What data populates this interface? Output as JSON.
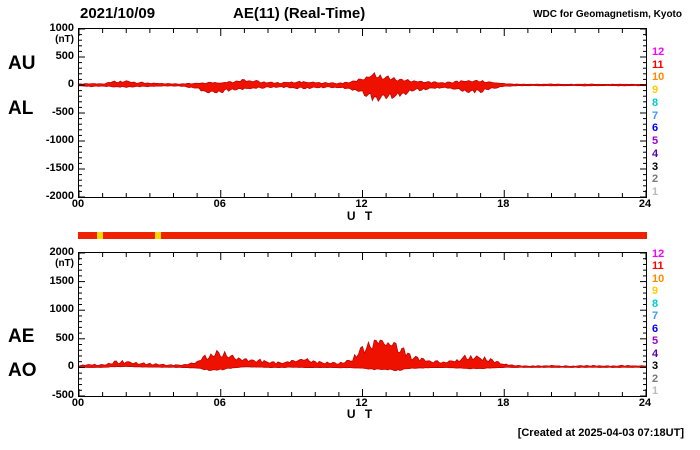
{
  "header": {
    "date": "2021/10/09",
    "title": "AE(11) (Real-Time)",
    "source": "WDC for Geomagnetism, Kyoto"
  },
  "footer": {
    "created": "[Created at 2025-04-03 07:18UT]"
  },
  "legend": {
    "station_counts": [
      {
        "n": "12",
        "color": "#ff00ff"
      },
      {
        "n": "11",
        "color": "#ff0000"
      },
      {
        "n": "10",
        "color": "#ff8800"
      },
      {
        "n": "9",
        "color": "#ffcc00"
      },
      {
        "n": "8",
        "color": "#00cccc"
      },
      {
        "n": "7",
        "color": "#3399ff"
      },
      {
        "n": "6",
        "color": "#0000ee"
      },
      {
        "n": "5",
        "color": "#9900cc"
      },
      {
        "n": "4",
        "color": "#5500aa"
      },
      {
        "n": "3",
        "color": "#000000"
      },
      {
        "n": "2",
        "color": "#777777"
      },
      {
        "n": "1",
        "color": "#bbbbbb"
      }
    ]
  },
  "status_bar": {
    "color": "#ee2200",
    "segments": [
      {
        "start": 0.8,
        "end": 1.05,
        "color": "#f7d800"
      },
      {
        "start": 3.25,
        "end": 3.5,
        "color": "#f7d800"
      }
    ]
  },
  "chart_data": [
    {
      "type": "area",
      "labels_left": [
        "AU",
        "AL"
      ],
      "xlabel": "U T",
      "ylabel": "(nT)",
      "xlim": [
        0,
        24
      ],
      "ylim": [
        -2000,
        1000
      ],
      "yticks": [
        1000,
        500,
        0,
        -500,
        -1000,
        -1500,
        -2000
      ],
      "xticks": [
        "00",
        "06",
        "12",
        "18",
        "24"
      ],
      "fill_color": "#ee1100",
      "stroke_color": "#bb0000",
      "x": [
        0,
        0.5,
        1,
        1.5,
        2,
        2.5,
        3,
        3.5,
        4,
        4.5,
        5,
        5.5,
        6,
        6.5,
        7,
        7.5,
        8,
        8.5,
        9,
        9.5,
        10,
        10.5,
        11,
        11.5,
        12,
        12.5,
        13,
        13.5,
        14,
        14.5,
        15,
        15.5,
        16,
        16.5,
        17,
        17.5,
        18,
        18.5,
        19,
        19.5,
        20,
        20.5,
        21,
        21.5,
        22,
        22.5,
        23,
        23.5,
        24
      ],
      "series": [
        {
          "name": "AU",
          "values": [
            15,
            25,
            20,
            55,
            65,
            45,
            35,
            25,
            20,
            20,
            30,
            40,
            35,
            55,
            85,
            65,
            45,
            35,
            55,
            50,
            40,
            35,
            30,
            55,
            110,
            170,
            140,
            95,
            75,
            55,
            45,
            40,
            55,
            75,
            65,
            45,
            25,
            15,
            12,
            12,
            15,
            12,
            12,
            15,
            12,
            12,
            15,
            12,
            12
          ]
        },
        {
          "name": "AL",
          "values": [
            -15,
            -25,
            -20,
            -30,
            -35,
            -30,
            -25,
            -20,
            -18,
            -28,
            -55,
            -140,
            -115,
            -75,
            -65,
            -55,
            -45,
            -38,
            -48,
            -55,
            -45,
            -38,
            -42,
            -65,
            -140,
            -240,
            -210,
            -190,
            -110,
            -75,
            -55,
            -45,
            -75,
            -115,
            -105,
            -65,
            -25,
            -15,
            -12,
            -12,
            -15,
            -12,
            -12,
            -15,
            -12,
            -12,
            -15,
            -12,
            -12
          ]
        }
      ]
    },
    {
      "type": "area",
      "labels_left": [
        "AE",
        "AO"
      ],
      "xlabel": "U T",
      "ylabel": "(nT)",
      "xlim": [
        0,
        24
      ],
      "ylim": [
        -500,
        2000
      ],
      "yticks": [
        2000,
        1500,
        1000,
        500,
        0,
        -500
      ],
      "xticks": [
        "00",
        "06",
        "12",
        "18",
        "24"
      ],
      "fill_color": "#ee1100",
      "stroke_color": "#bb0000",
      "x": [
        0,
        0.5,
        1,
        1.5,
        2,
        2.5,
        3,
        3.5,
        4,
        4.5,
        5,
        5.5,
        6,
        6.5,
        7,
        7.5,
        8,
        8.5,
        9,
        9.5,
        10,
        10.5,
        11,
        11.5,
        12,
        12.5,
        13,
        13.5,
        14,
        14.5,
        15,
        15.5,
        16,
        16.5,
        17,
        17.5,
        18,
        18.5,
        19,
        19.5,
        20,
        20.5,
        21,
        21.5,
        22,
        22.5,
        23,
        23.5,
        24
      ],
      "series": [
        {
          "name": "AE",
          "values": [
            30,
            50,
            40,
            85,
            100,
            75,
            60,
            45,
            38,
            48,
            85,
            210,
            240,
            170,
            150,
            120,
            95,
            75,
            105,
            140,
            90,
            75,
            72,
            120,
            330,
            460,
            400,
            360,
            185,
            130,
            100,
            85,
            130,
            190,
            170,
            110,
            50,
            30,
            25,
            25,
            30,
            25,
            25,
            30,
            25,
            25,
            30,
            25,
            25
          ]
        },
        {
          "name": "AO",
          "values": [
            0,
            0,
            0,
            12,
            15,
            8,
            5,
            2,
            1,
            -4,
            -12,
            -50,
            -40,
            -10,
            10,
            5,
            0,
            -2,
            4,
            -3,
            -3,
            -2,
            -6,
            -5,
            -15,
            -35,
            -35,
            -48,
            -18,
            -10,
            -4,
            -3,
            -10,
            -20,
            -20,
            -10,
            0,
            0,
            0,
            0,
            0,
            0,
            0,
            0,
            0,
            0,
            0,
            0,
            0
          ]
        }
      ]
    }
  ]
}
